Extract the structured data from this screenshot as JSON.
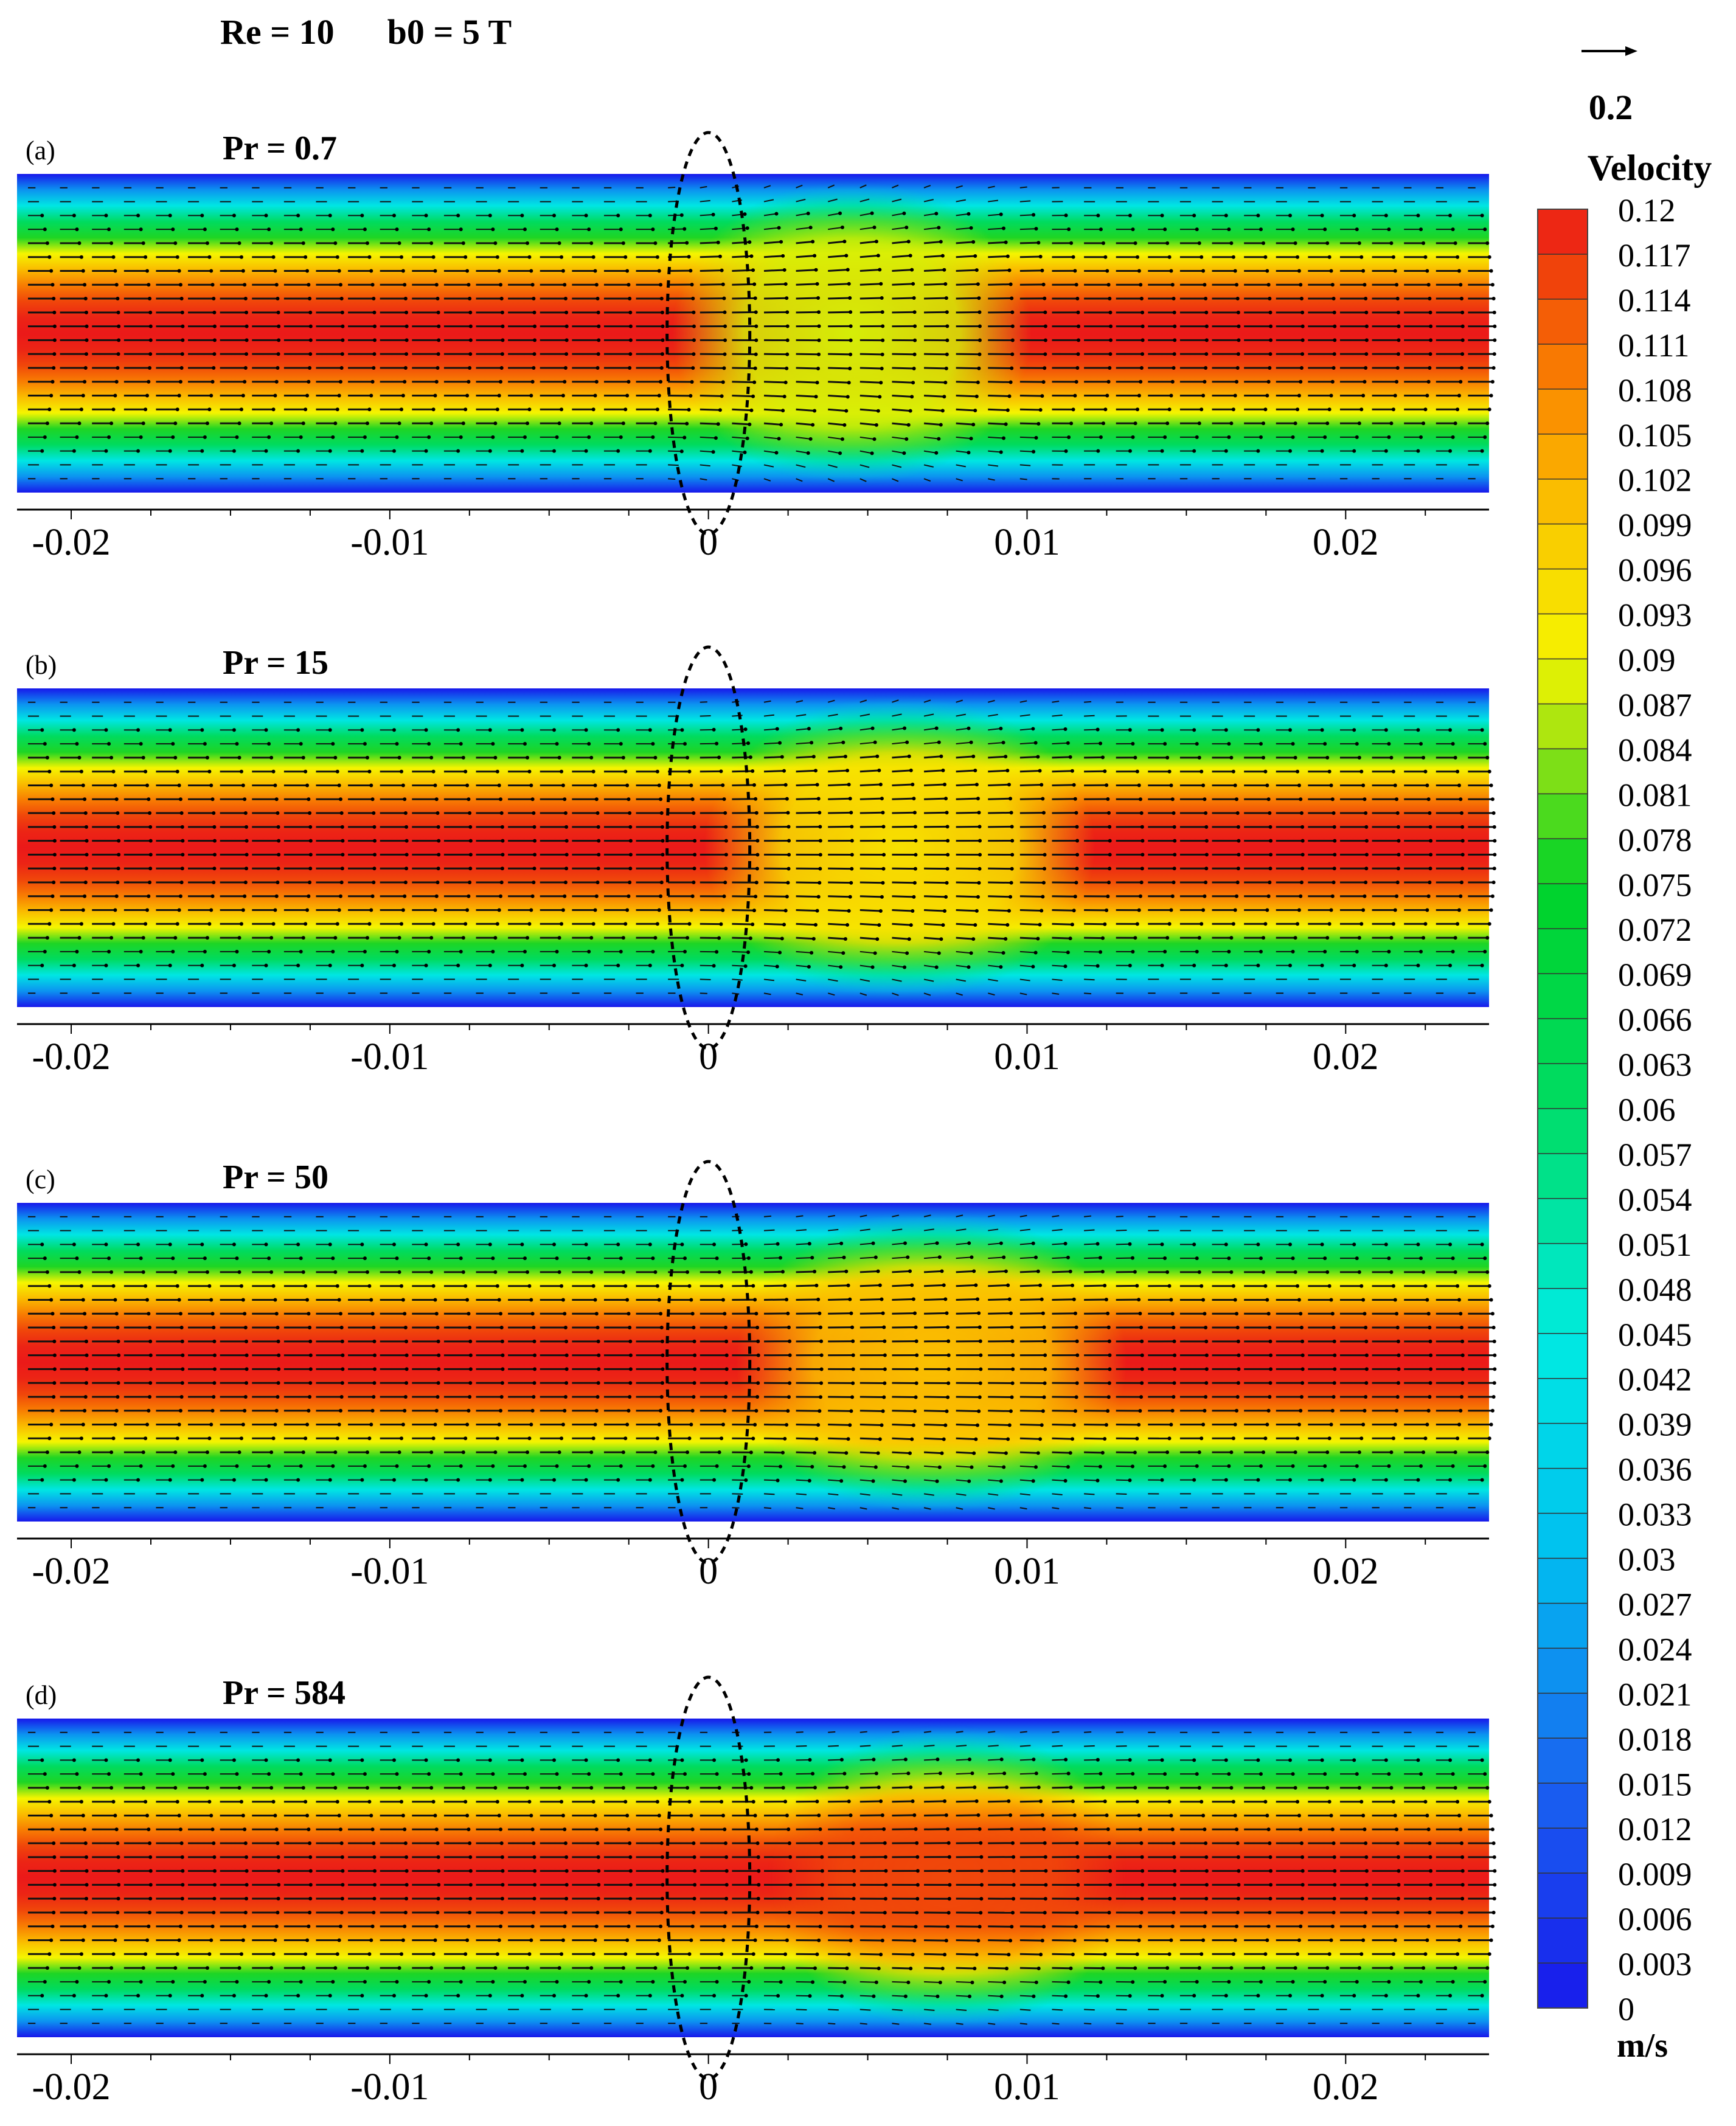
{
  "chart_data": {
    "type": "heatmap",
    "title": "Re = 10      b0 = 5 T",
    "xlabel": "",
    "ylabel": "",
    "x_ticks": [
      -0.02,
      -0.01,
      0,
      0.01,
      0.02
    ],
    "x_tick_labels": [
      "-0.02",
      "-0.01",
      "0",
      "0.01",
      "0.02"
    ],
    "xlim": [
      -0.0217,
      0.0245
    ],
    "arrow_reference": {
      "label": "0.2"
    },
    "colorbar": {
      "title": "Velocity",
      "unit": "m/s",
      "levels": [
        "0.12",
        "0.117",
        "0.114",
        "0.111",
        "0.108",
        "0.105",
        "0.102",
        "0.099",
        "0.096",
        "0.093",
        "0.09",
        "0.087",
        "0.084",
        "0.081",
        "0.078",
        "0.075",
        "0.072",
        "0.069",
        "0.066",
        "0.063",
        "0.06",
        "0.057",
        "0.054",
        "0.051",
        "0.048",
        "0.045",
        "0.042",
        "0.039",
        "0.036",
        "0.033",
        "0.03",
        "0.027",
        "0.024",
        "0.021",
        "0.018",
        "0.015",
        "0.012",
        "0.009",
        "0.006",
        "0.003",
        "0"
      ],
      "min": 0,
      "max": 0.12
    },
    "panels": [
      {
        "label": "(a)",
        "title": "Pr = 0.7",
        "centerline_velocity_max": 0.12,
        "dip_region": [
          0.0,
          0.009
        ],
        "dip_min_velocity": 0.084
      },
      {
        "label": "(b)",
        "title": "Pr = 15",
        "centerline_velocity_max": 0.12,
        "dip_region": [
          0.001,
          0.011
        ],
        "dip_min_velocity": 0.09
      },
      {
        "label": "(c)",
        "title": "Pr = 50",
        "centerline_velocity_max": 0.12,
        "dip_region": [
          0.002,
          0.012
        ],
        "dip_min_velocity": 0.096
      },
      {
        "label": "(d)",
        "title": "Pr = 584",
        "centerline_velocity_max": 0.12,
        "dip_region": [
          0.003,
          0.012
        ],
        "dip_min_velocity": 0.111
      }
    ]
  }
}
